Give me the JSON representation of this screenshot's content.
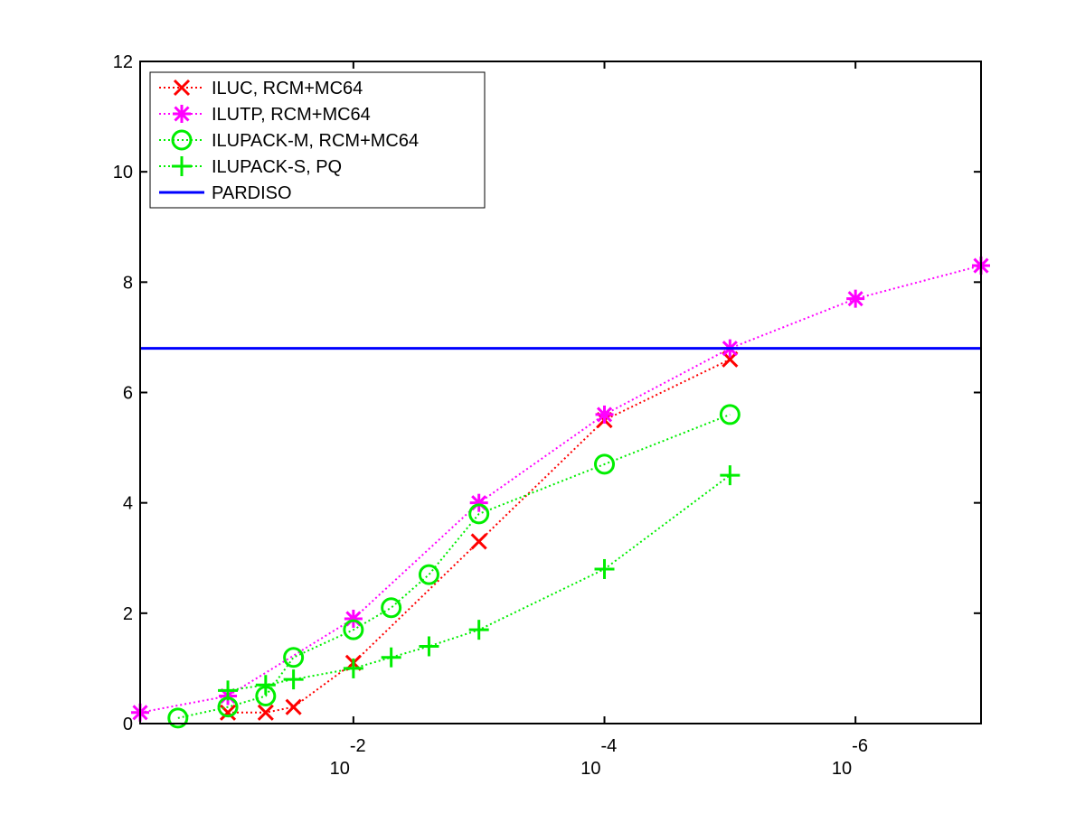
{
  "chart_data": {
    "type": "line",
    "x_scale": "log",
    "x_reversed": true,
    "xlim": [
      0.5,
      1e-07
    ],
    "ylim": [
      0,
      12
    ],
    "grid": false,
    "legend_position": "top-left",
    "y_ticks": [
      {
        "value": 0,
        "label": "0"
      },
      {
        "value": 2,
        "label": "2"
      },
      {
        "value": 4,
        "label": "4"
      },
      {
        "value": 6,
        "label": "6"
      },
      {
        "value": 8,
        "label": "8"
      },
      {
        "value": 10,
        "label": "10"
      },
      {
        "value": 12,
        "label": "12"
      }
    ],
    "x_ticks": [
      {
        "value": 0.01,
        "base": "10",
        "exponent": "-2"
      },
      {
        "value": 0.0001,
        "base": "10",
        "exponent": "-4"
      },
      {
        "value": 1e-06,
        "base": "10",
        "exponent": "-6"
      }
    ],
    "series": [
      {
        "name": "ILUC, RCM+MC64",
        "color": "#ff0000",
        "style": "dotted",
        "marker": "x",
        "x": [
          0.1,
          0.05,
          0.03,
          0.01,
          0.001,
          0.0001,
          1e-05
        ],
        "y": [
          0.2,
          0.2,
          0.3,
          1.1,
          3.3,
          5.5,
          6.6
        ]
      },
      {
        "name": "ILUTP, RCM+MC64",
        "color": "#ff00ff",
        "style": "dotted",
        "marker": "asterisk",
        "x": [
          0.5,
          0.1,
          0.01,
          0.001,
          0.0001,
          1e-05,
          1e-06,
          1e-07
        ],
        "y": [
          0.2,
          0.5,
          1.9,
          4.0,
          5.6,
          6.8,
          7.7,
          8.3
        ]
      },
      {
        "name": "ILUPACK-M, RCM+MC64",
        "color": "#00ee00",
        "style": "dotted",
        "marker": "circle",
        "x": [
          0.25,
          0.1,
          0.05,
          0.03,
          0.01,
          0.005,
          0.0025,
          0.001,
          0.0001,
          1e-05
        ],
        "y": [
          0.1,
          0.3,
          0.5,
          1.2,
          1.7,
          2.1,
          2.7,
          3.8,
          4.7,
          5.6
        ]
      },
      {
        "name": "ILUPACK-S, PQ",
        "color": "#00ee00",
        "style": "dotted",
        "marker": "plus",
        "x": [
          0.1,
          0.05,
          0.03,
          0.01,
          0.005,
          0.0025,
          0.001,
          0.0001,
          1e-05
        ],
        "y": [
          0.6,
          0.7,
          0.8,
          1.0,
          1.2,
          1.4,
          1.7,
          2.8,
          4.5
        ]
      },
      {
        "name": "PARDISO",
        "color": "#0000ff",
        "style": "solid",
        "marker": "none",
        "x": [
          0.5,
          1e-07
        ],
        "y": [
          6.8,
          6.8
        ]
      }
    ]
  }
}
